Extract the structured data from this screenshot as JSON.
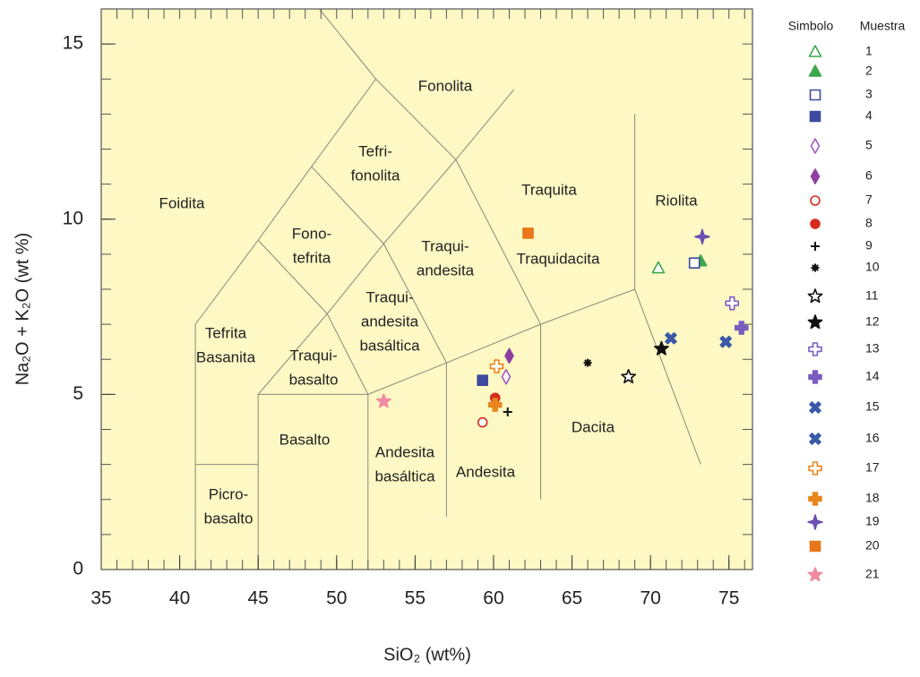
{
  "chart_data": {
    "type": "scatter",
    "x_label": "SiO₂ (wt%)",
    "y_label": "Na₂O + K₂O (wt %)",
    "xlim": [
      35,
      76.5
    ],
    "ylim": [
      0,
      16
    ],
    "xticks": [
      35,
      40,
      45,
      50,
      55,
      60,
      65,
      70,
      75
    ],
    "yticks": [
      0,
      5,
      10,
      15
    ],
    "background": "#fdf8c4",
    "legend_headers": [
      "Simbolo",
      "Muestra"
    ],
    "fields": [
      [
        "Foidita"
      ],
      [
        "Fonolita"
      ],
      [
        "Tefri-",
        "fonolita"
      ],
      [
        "Fono-",
        "tefrita"
      ],
      [
        "Traquita"
      ],
      [
        "Riolita"
      ],
      [
        "Traqui-",
        "andesita"
      ],
      [
        "Traquidacita"
      ],
      [
        "Tefrita",
        "Basanita"
      ],
      [
        "Traqui-",
        "andesita",
        "basáltica"
      ],
      [
        "Traqui-",
        "basalto"
      ],
      [
        "Basalto"
      ],
      [
        "Andesita",
        "basáltica"
      ],
      [
        "Andesita"
      ],
      [
        "Dacita"
      ],
      [
        "Picro-",
        "basalto"
      ]
    ],
    "series": [
      {
        "name": "1",
        "color": "#3aa84a",
        "marker": "triangle",
        "filled": false,
        "x": [
          70.5
        ],
        "values": [
          8.6
        ]
      },
      {
        "name": "2",
        "color": "#3aa84a",
        "marker": "triangle",
        "filled": true,
        "x": [
          73.2
        ],
        "values": [
          8.8
        ]
      },
      {
        "name": "3",
        "color": "#3d4a9e",
        "marker": "square",
        "filled": false,
        "x": [
          72.8
        ],
        "values": [
          8.75
        ]
      },
      {
        "name": "4",
        "color": "#3d4a9e",
        "marker": "square",
        "filled": true,
        "x": [
          59.3
        ],
        "values": [
          5.4
        ]
      },
      {
        "name": "5",
        "color": "#a35bc0",
        "marker": "diamond",
        "filled": false,
        "x": [
          60.8
        ],
        "values": [
          5.5
        ]
      },
      {
        "name": "6",
        "color": "#8e3fa0",
        "marker": "diamond",
        "filled": true,
        "x": [
          61
        ],
        "values": [
          6.1
        ]
      },
      {
        "name": "7",
        "color": "#d52b1e",
        "marker": "circle",
        "filled": false,
        "x": [
          59.3
        ],
        "values": [
          4.2
        ]
      },
      {
        "name": "8",
        "color": "#d52b1e",
        "marker": "circle",
        "filled": true,
        "x": [
          60.1
        ],
        "values": [
          4.9
        ]
      },
      {
        "name": "9",
        "color": "#111111",
        "marker": "plus",
        "filled": true,
        "x": [
          60.9
        ],
        "values": [
          4.5
        ]
      },
      {
        "name": "10",
        "color": "#111111",
        "marker": "asterisk",
        "filled": true,
        "x": [
          66
        ],
        "values": [
          5.9
        ]
      },
      {
        "name": "11",
        "color": "#111111",
        "marker": "star",
        "filled": false,
        "x": [
          68.6
        ],
        "values": [
          5.5
        ]
      },
      {
        "name": "12",
        "color": "#111111",
        "marker": "star",
        "filled": true,
        "x": [
          70.7
        ],
        "values": [
          6.3
        ]
      },
      {
        "name": "13",
        "color": "#7a5cc0",
        "marker": "cross",
        "filled": false,
        "x": [
          75.2
        ],
        "values": [
          7.6
        ]
      },
      {
        "name": "14",
        "color": "#7a5cc0",
        "marker": "cross",
        "filled": true,
        "x": [
          75.8
        ],
        "values": [
          6.9
        ]
      },
      {
        "name": "15",
        "color": "#3a5aa8",
        "marker": "x",
        "filled": true,
        "x": [
          74.8
        ],
        "values": [
          6.5
        ]
      },
      {
        "name": "16",
        "color": "#3a5aa8",
        "marker": "x",
        "filled": true,
        "x": [
          71.3
        ],
        "values": [
          6.6
        ]
      },
      {
        "name": "17",
        "color": "#e8861d",
        "marker": "cross",
        "filled": false,
        "x": [
          60.2
        ],
        "values": [
          5.8
        ]
      },
      {
        "name": "18",
        "color": "#e8861d",
        "marker": "cross",
        "filled": true,
        "x": [
          60.1
        ],
        "values": [
          4.7
        ]
      },
      {
        "name": "19",
        "color": "#6a4fb0",
        "marker": "star4",
        "filled": true,
        "x": [
          73.3
        ],
        "values": [
          9.5
        ]
      },
      {
        "name": "20",
        "color": "#e8771a",
        "marker": "square",
        "filled": true,
        "x": [
          62.2
        ],
        "values": [
          9.6
        ]
      },
      {
        "name": "21",
        "color": "#f08aa0",
        "marker": "star",
        "filled": true,
        "x": [
          53
        ],
        "values": [
          4.8
        ]
      }
    ]
  }
}
